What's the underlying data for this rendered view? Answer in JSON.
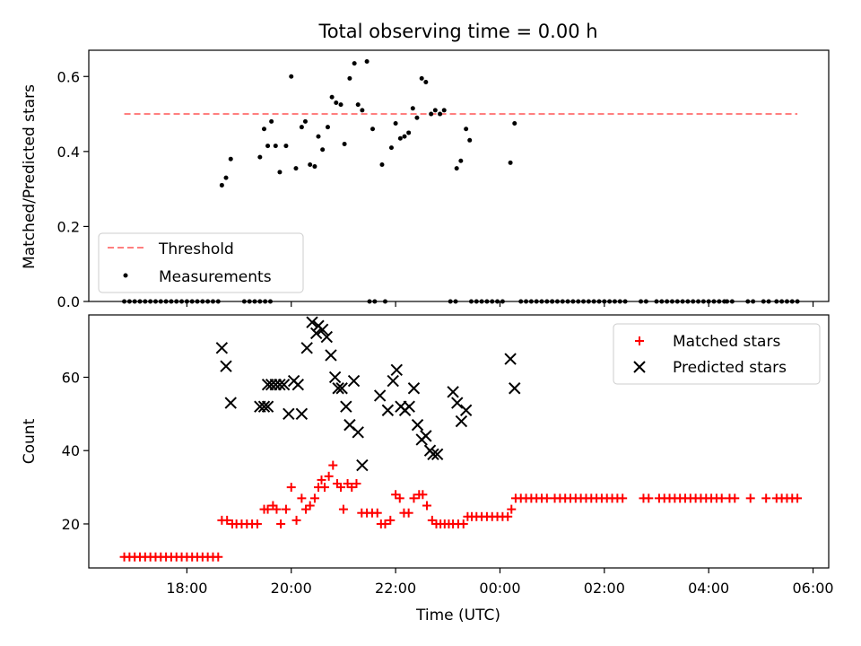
{
  "title": "Total observing time = 0.00 h",
  "chart_data": [
    {
      "type": "scatter",
      "ylabel": "Matched/Predicted stars",
      "ylim": [
        0,
        0.67
      ],
      "yticks": [
        "0.0",
        "0.2",
        "0.4",
        "0.6"
      ],
      "xlim_hours": [
        16.12,
        30.3
      ],
      "legend": {
        "placement": "lower-left",
        "entries": [
          "Threshold",
          "Measurements"
        ]
      },
      "threshold": {
        "name": "Threshold",
        "value": 0.5,
        "x_start": 16.8,
        "x_end": 29.7,
        "color": "#ff7f7f",
        "style": "dashed"
      },
      "measurements": {
        "name": "Measurements",
        "color": "#000000",
        "points": [
          [
            18.67,
            0.31
          ],
          [
            18.75,
            0.33
          ],
          [
            18.84,
            0.38
          ],
          [
            19.4,
            0.385
          ],
          [
            19.48,
            0.46
          ],
          [
            19.55,
            0.415
          ],
          [
            19.62,
            0.48
          ],
          [
            19.7,
            0.415
          ],
          [
            19.78,
            0.345
          ],
          [
            19.9,
            0.415
          ],
          [
            20.0,
            0.6
          ],
          [
            20.09,
            0.355
          ],
          [
            20.2,
            0.465
          ],
          [
            20.27,
            0.48
          ],
          [
            20.36,
            0.365
          ],
          [
            20.45,
            0.36
          ],
          [
            20.52,
            0.44
          ],
          [
            20.6,
            0.405
          ],
          [
            20.7,
            0.465
          ],
          [
            20.78,
            0.545
          ],
          [
            20.86,
            0.53
          ],
          [
            20.95,
            0.525
          ],
          [
            21.02,
            0.42
          ],
          [
            21.12,
            0.595
          ],
          [
            21.21,
            0.635
          ],
          [
            21.28,
            0.525
          ],
          [
            21.36,
            0.51
          ],
          [
            21.45,
            0.64
          ],
          [
            21.56,
            0.46
          ],
          [
            21.74,
            0.365
          ],
          [
            21.92,
            0.41
          ],
          [
            22.0,
            0.475
          ],
          [
            22.09,
            0.435
          ],
          [
            22.17,
            0.44
          ],
          [
            22.25,
            0.45
          ],
          [
            22.33,
            0.515
          ],
          [
            22.41,
            0.49
          ],
          [
            22.5,
            0.595
          ],
          [
            22.58,
            0.585
          ],
          [
            22.68,
            0.5
          ],
          [
            22.76,
            0.51
          ],
          [
            22.85,
            0.5
          ],
          [
            22.93,
            0.51
          ],
          [
            23.17,
            0.355
          ],
          [
            23.25,
            0.375
          ],
          [
            23.35,
            0.46
          ],
          [
            23.42,
            0.43
          ],
          [
            24.2,
            0.37
          ],
          [
            24.28,
            0.475
          ]
        ],
        "zero_ranges_hours": [
          [
            16.8,
            18.6
          ],
          [
            19.1,
            19.6
          ],
          [
            21.5,
            21.6
          ],
          [
            21.8,
            21.85
          ],
          [
            23.05,
            23.15
          ],
          [
            23.45,
            24.1
          ],
          [
            24.4,
            25.0
          ],
          [
            25.0,
            26.4
          ],
          [
            26.7,
            26.8
          ],
          [
            27.0,
            28.3
          ],
          [
            28.35,
            28.5
          ],
          [
            28.75,
            28.85
          ],
          [
            29.05,
            29.15
          ],
          [
            29.3,
            29.7
          ]
        ]
      }
    },
    {
      "type": "scatter",
      "xlabel": "Time (UTC)",
      "ylabel": "Count",
      "ylim": [
        8,
        77
      ],
      "yticks": [
        "20",
        "40",
        "60"
      ],
      "xticks": [
        "18:00",
        "20:00",
        "22:00",
        "00:00",
        "02:00",
        "04:00",
        "06:00"
      ],
      "xtick_hours": [
        18,
        20,
        22,
        24,
        26,
        28,
        30
      ],
      "xlim_hours": [
        16.12,
        30.3
      ],
      "legend": {
        "placement": "top-right",
        "entries": [
          "Matched stars",
          "Predicted stars"
        ]
      },
      "series": [
        {
          "name": "Matched stars",
          "color": "#ff0000",
          "marker": "+",
          "points": [
            [
              16.8,
              11
            ],
            [
              16.9,
              11
            ],
            [
              17.0,
              11
            ],
            [
              17.1,
              11
            ],
            [
              17.2,
              11
            ],
            [
              17.3,
              11
            ],
            [
              17.4,
              11
            ],
            [
              17.5,
              11
            ],
            [
              17.6,
              11
            ],
            [
              17.7,
              11
            ],
            [
              17.8,
              11
            ],
            [
              17.9,
              11
            ],
            [
              18.0,
              11
            ],
            [
              18.1,
              11
            ],
            [
              18.2,
              11
            ],
            [
              18.3,
              11
            ],
            [
              18.4,
              11
            ],
            [
              18.5,
              11
            ],
            [
              18.6,
              11
            ],
            [
              18.67,
              21
            ],
            [
              18.77,
              21
            ],
            [
              18.87,
              20
            ],
            [
              18.95,
              20
            ],
            [
              19.05,
              20
            ],
            [
              19.15,
              20
            ],
            [
              19.25,
              20
            ],
            [
              19.35,
              20
            ],
            [
              19.48,
              24
            ],
            [
              19.55,
              24
            ],
            [
              19.65,
              25
            ],
            [
              19.72,
              24
            ],
            [
              19.8,
              20
            ],
            [
              19.9,
              24
            ],
            [
              20.0,
              30
            ],
            [
              20.1,
              21
            ],
            [
              20.2,
              27
            ],
            [
              20.28,
              24
            ],
            [
              20.36,
              25
            ],
            [
              20.45,
              27
            ],
            [
              20.52,
              30
            ],
            [
              20.58,
              32
            ],
            [
              20.64,
              30
            ],
            [
              20.72,
              33
            ],
            [
              20.8,
              36
            ],
            [
              20.88,
              31
            ],
            [
              20.95,
              30
            ],
            [
              21.0,
              24
            ],
            [
              21.08,
              31
            ],
            [
              21.16,
              30
            ],
            [
              21.25,
              31
            ],
            [
              21.35,
              23
            ],
            [
              21.45,
              23
            ],
            [
              21.55,
              23
            ],
            [
              21.65,
              23
            ],
            [
              21.72,
              20
            ],
            [
              21.8,
              20
            ],
            [
              21.9,
              21
            ],
            [
              22.0,
              28
            ],
            [
              22.08,
              27
            ],
            [
              22.16,
              23
            ],
            [
              22.25,
              23
            ],
            [
              22.35,
              27
            ],
            [
              22.45,
              28
            ],
            [
              22.52,
              28
            ],
            [
              22.6,
              25
            ],
            [
              22.7,
              21
            ],
            [
              22.78,
              20
            ],
            [
              22.86,
              20
            ],
            [
              22.94,
              20
            ],
            [
              23.02,
              20
            ],
            [
              23.1,
              20
            ],
            [
              23.2,
              20
            ],
            [
              23.3,
              20
            ],
            [
              23.38,
              22
            ],
            [
              23.46,
              22
            ],
            [
              23.55,
              22
            ],
            [
              23.65,
              22
            ],
            [
              23.75,
              22
            ],
            [
              23.85,
              22
            ],
            [
              23.95,
              22
            ],
            [
              24.05,
              22
            ],
            [
              24.15,
              22
            ],
            [
              24.22,
              24
            ],
            [
              24.3,
              27
            ],
            [
              24.4,
              27
            ],
            [
              24.5,
              27
            ],
            [
              24.6,
              27
            ],
            [
              24.7,
              27
            ],
            [
              24.8,
              27
            ],
            [
              24.9,
              27
            ],
            [
              25.05,
              27
            ],
            [
              25.15,
              27
            ],
            [
              25.25,
              27
            ],
            [
              25.35,
              27
            ],
            [
              25.45,
              27
            ],
            [
              25.55,
              27
            ],
            [
              25.65,
              27
            ],
            [
              25.75,
              27
            ],
            [
              25.85,
              27
            ],
            [
              25.95,
              27
            ],
            [
              26.05,
              27
            ],
            [
              26.15,
              27
            ],
            [
              26.25,
              27
            ],
            [
              26.35,
              27
            ],
            [
              26.75,
              27
            ],
            [
              26.85,
              27
            ],
            [
              27.05,
              27
            ],
            [
              27.15,
              27
            ],
            [
              27.25,
              27
            ],
            [
              27.35,
              27
            ],
            [
              27.45,
              27
            ],
            [
              27.55,
              27
            ],
            [
              27.65,
              27
            ],
            [
              27.75,
              27
            ],
            [
              27.85,
              27
            ],
            [
              27.95,
              27
            ],
            [
              28.05,
              27
            ],
            [
              28.15,
              27
            ],
            [
              28.25,
              27
            ],
            [
              28.4,
              27
            ],
            [
              28.5,
              27
            ],
            [
              28.8,
              27
            ],
            [
              29.1,
              27
            ],
            [
              29.3,
              27
            ],
            [
              29.4,
              27
            ],
            [
              29.5,
              27
            ],
            [
              29.6,
              27
            ],
            [
              29.7,
              27
            ]
          ]
        },
        {
          "name": "Predicted stars",
          "color": "#000000",
          "marker": "x",
          "points": [
            [
              18.67,
              68
            ],
            [
              18.75,
              63
            ],
            [
              18.84,
              53
            ],
            [
              19.4,
              52
            ],
            [
              19.48,
              52
            ],
            [
              19.55,
              52
            ],
            [
              19.55,
              58
            ],
            [
              19.62,
              58
            ],
            [
              19.7,
              58
            ],
            [
              19.78,
              58
            ],
            [
              19.86,
              58
            ],
            [
              19.95,
              50
            ],
            [
              20.05,
              59
            ],
            [
              20.13,
              58
            ],
            [
              20.2,
              50
            ],
            [
              20.3,
              68
            ],
            [
              20.4,
              75
            ],
            [
              20.48,
              72
            ],
            [
              20.52,
              74
            ],
            [
              20.6,
              73
            ],
            [
              20.68,
              71
            ],
            [
              20.76,
              66
            ],
            [
              20.84,
              60
            ],
            [
              20.9,
              57
            ],
            [
              20.97,
              57
            ],
            [
              21.05,
              52
            ],
            [
              21.12,
              47
            ],
            [
              21.2,
              59
            ],
            [
              21.28,
              45
            ],
            [
              21.36,
              36
            ],
            [
              21.7,
              55
            ],
            [
              21.85,
              51
            ],
            [
              21.95,
              59
            ],
            [
              22.02,
              62
            ],
            [
              22.1,
              52
            ],
            [
              22.18,
              51
            ],
            [
              22.26,
              52
            ],
            [
              22.35,
              57
            ],
            [
              22.42,
              47
            ],
            [
              22.5,
              43
            ],
            [
              22.58,
              44
            ],
            [
              22.66,
              40
            ],
            [
              22.72,
              39
            ],
            [
              22.8,
              39
            ],
            [
              23.1,
              56
            ],
            [
              23.18,
              53
            ],
            [
              23.26,
              48
            ],
            [
              23.35,
              51
            ],
            [
              24.2,
              65
            ],
            [
              24.28,
              57
            ]
          ]
        }
      ]
    }
  ]
}
